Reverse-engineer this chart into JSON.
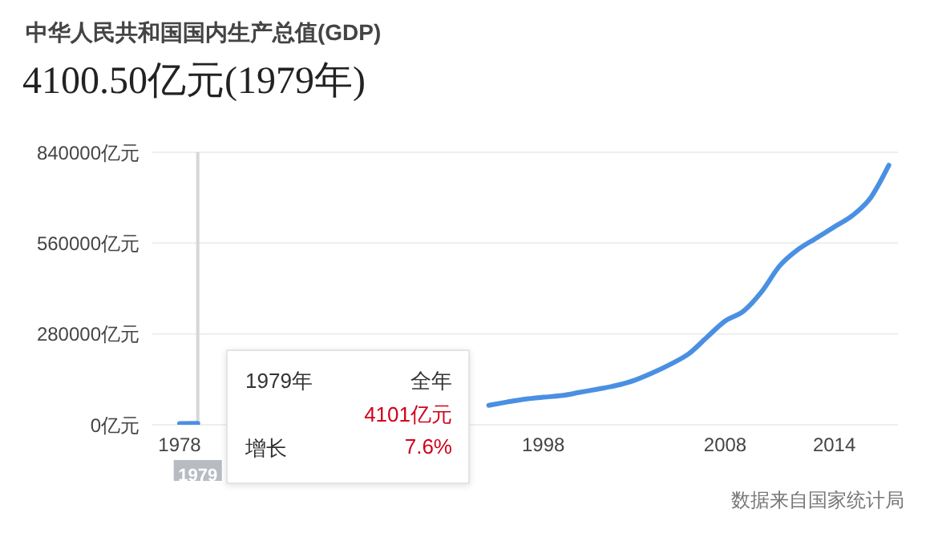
{
  "chart_data": {
    "type": "line",
    "title": "中华人民共和国国内生产总值(GDP)",
    "subtitle": "4100.50亿元(1979年)",
    "x": [
      1978,
      1979,
      1980,
      1981,
      1982,
      1983,
      1984,
      1985,
      1986,
      1987,
      1988,
      1989,
      1990,
      1991,
      1992,
      1993,
      1994,
      1995,
      1996,
      1997,
      1998,
      1999,
      2000,
      2001,
      2002,
      2003,
      2004,
      2005,
      2006,
      2007,
      2008,
      2009,
      2010,
      2011,
      2012,
      2013,
      2014,
      2015,
      2016,
      2017
    ],
    "series": [
      {
        "color": "#4a90e2",
        "values": [
          4000,
          4101,
          null,
          null,
          null,
          null,
          null,
          null,
          null,
          null,
          null,
          null,
          null,
          null,
          null,
          null,
          null,
          60000,
          70000,
          79000,
          85000,
          90000,
          100000,
          110000,
          121000,
          137000,
          160000,
          187000,
          219000,
          270000,
          320000,
          350000,
          410000,
          490000,
          540000,
          575000,
          610000,
          645000,
          700000,
          800000
        ]
      }
    ],
    "xlim": [
      1976.5,
      2017.5
    ],
    "xticks": [
      1978,
      1998,
      2008,
      2014
    ],
    "ylim": [
      0,
      840000
    ],
    "yticks": [
      {
        "value": 0,
        "label": "0亿元"
      },
      {
        "value": 280000,
        "label": "280000亿元"
      },
      {
        "value": 560000,
        "label": "560000亿元"
      },
      {
        "value": 840000,
        "label": "840000亿元"
      }
    ],
    "grid": "y",
    "marker": "none",
    "line_style": "solid",
    "legend": false,
    "ref_lines": [
      {
        "axis": "x",
        "value": 1979,
        "label": "1979",
        "color": "#d6d6d6"
      }
    ],
    "annotations": [
      "1979年",
      "全年",
      "4101亿元",
      "增长",
      "7.6%",
      "数据来自国家统计局"
    ]
  }
}
